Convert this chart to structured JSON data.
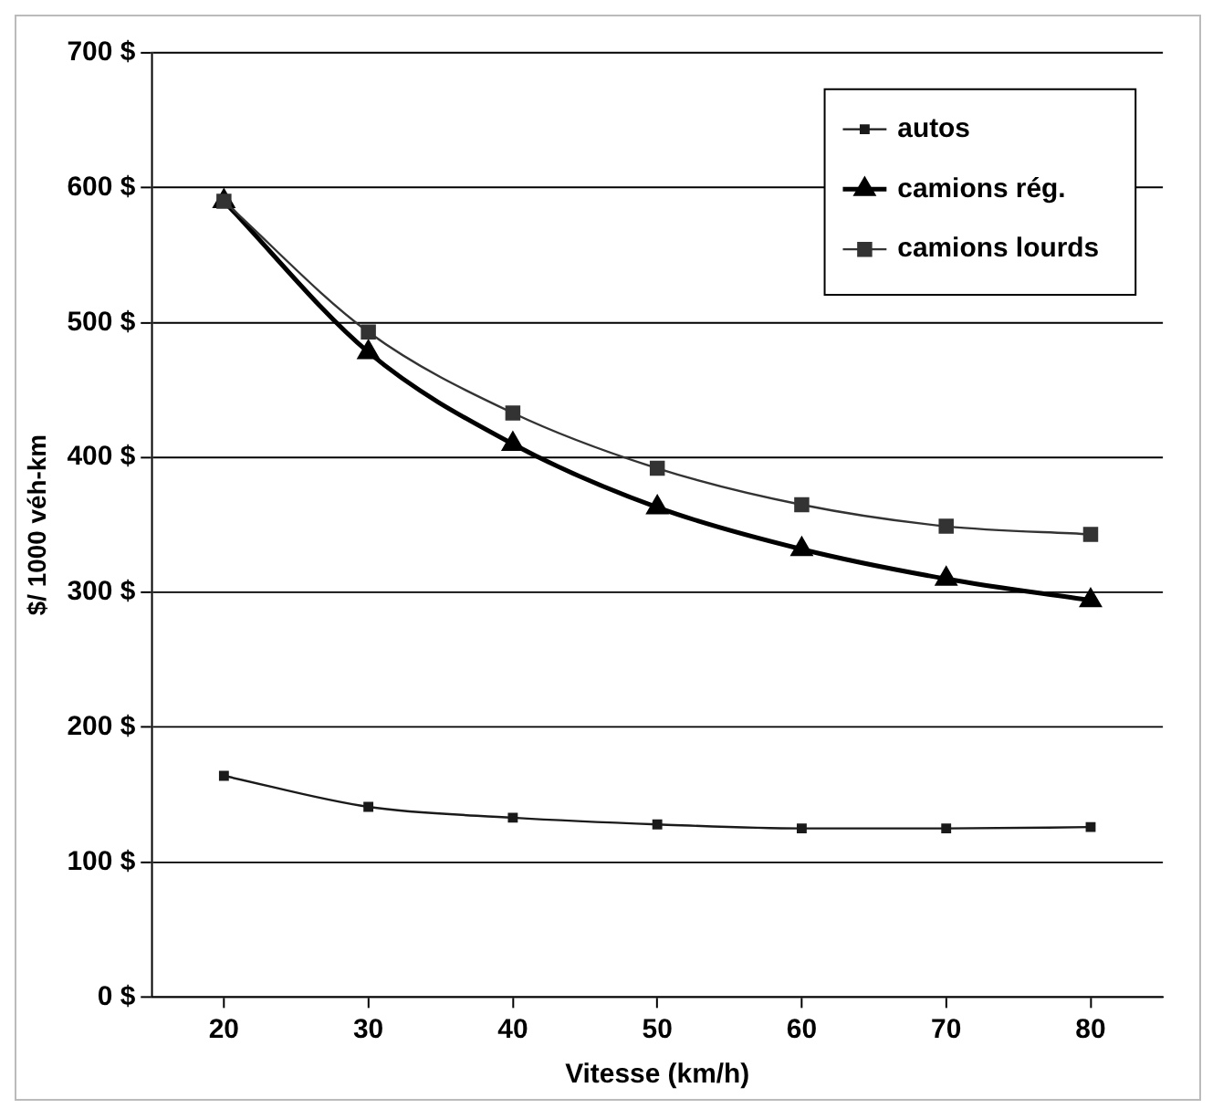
{
  "chart_data": {
    "type": "line",
    "xlabel": "Vitesse (km/h)",
    "ylabel": "$/ 1000 véh-km",
    "x": [
      20,
      30,
      40,
      50,
      60,
      70,
      80
    ],
    "series": [
      {
        "name": "autos",
        "color": "#1a1a1a",
        "marker": "square",
        "values": [
          164,
          141,
          133,
          128,
          125,
          125,
          126
        ]
      },
      {
        "name": "camions rég.",
        "color": "#000000",
        "marker": "triangle",
        "values": [
          590,
          478,
          410,
          363,
          332,
          310,
          294
        ]
      },
      {
        "name": "camions lourds",
        "color": "#333333",
        "marker": "square",
        "values": [
          590,
          493,
          433,
          392,
          365,
          349,
          343
        ]
      }
    ],
    "xlim": [
      15,
      85
    ],
    "xticks": [
      20,
      30,
      40,
      50,
      60,
      70,
      80
    ],
    "ylim": [
      0,
      700
    ],
    "yticks": [
      {
        "value": 0,
        "label": "0 $"
      },
      {
        "value": 100,
        "label": "100 $"
      },
      {
        "value": 200,
        "label": "200 $"
      },
      {
        "value": 300,
        "label": "300 $"
      },
      {
        "value": 400,
        "label": "400 $"
      },
      {
        "value": 500,
        "label": "500 $"
      },
      {
        "value": 600,
        "label": "600 $"
      },
      {
        "value": 700,
        "label": "700 $"
      }
    ],
    "grid": "y",
    "legend": "top right",
    "line_style": "solid"
  }
}
